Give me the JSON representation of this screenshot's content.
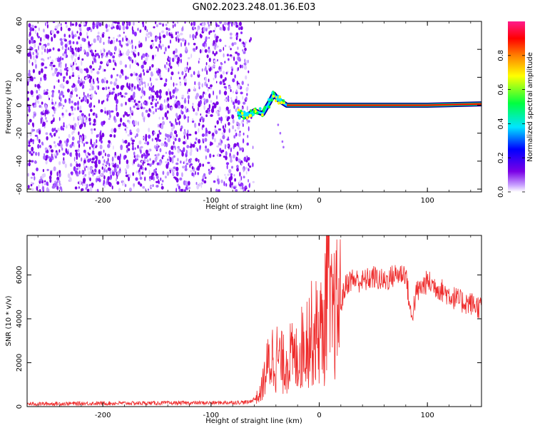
{
  "title": "GN02.2023.248.01.36.E03",
  "colors": {
    "snr_line": "#ee2a2a",
    "scatter_purple": "#7a00e6",
    "colorbar": [
      "#ffffff",
      "#c8a0ff",
      "#7a00e6",
      "#0000ff",
      "#00e5ff",
      "#00ff40",
      "#ffff00",
      "#ff7f00",
      "#ff0000",
      "#ff1a8c"
    ]
  },
  "chart_data": [
    {
      "type": "heatmap",
      "title": "GN02.2023.248.01.36.E03",
      "xlabel": "Height of straight line (km)",
      "ylabel": "Frequency (Hz)",
      "xlim": [
        -270,
        150
      ],
      "ylim": [
        -62,
        60
      ],
      "xticks": [
        -200,
        -100,
        0,
        100
      ],
      "yticks": [
        -60,
        -40,
        -20,
        0,
        20,
        40,
        60
      ],
      "noise_region": {
        "x": [
          -270,
          -65
        ],
        "y": [
          -62,
          60
        ],
        "description": "dense scattered low-amplitude speckle"
      },
      "signal_track": {
        "points": [
          {
            "x": -75,
            "y": -6
          },
          {
            "x": -68,
            "y": -8
          },
          {
            "x": -60,
            "y": -4
          },
          {
            "x": -52,
            "y": -6
          },
          {
            "x": -46,
            "y": 2
          },
          {
            "x": -42,
            "y": 8
          },
          {
            "x": -38,
            "y": 4
          },
          {
            "x": -30,
            "y": 0
          },
          {
            "x": 0,
            "y": 0
          },
          {
            "x": 100,
            "y": 0
          },
          {
            "x": 150,
            "y": 1
          }
        ],
        "peak_amplitude": 1.0
      },
      "colorbar": {
        "label": "Normalized spectral amplitude",
        "ticks": [
          0.0,
          0.2,
          0.4,
          0.6,
          0.8
        ],
        "range": [
          0,
          1
        ]
      }
    },
    {
      "type": "line",
      "xlabel": "Height of straight line (km)",
      "ylabel": "SNR (10 * v/v)",
      "xlim": [
        -270,
        150
      ],
      "ylim": [
        0,
        7800
      ],
      "xticks": [
        -200,
        -100,
        0,
        100
      ],
      "yticks": [
        0,
        2000,
        4000,
        6000
      ],
      "series": [
        {
          "x": [
            -270,
            -200,
            -100,
            -65,
            -55,
            -48,
            -42,
            -38,
            -33,
            -28,
            -22,
            -15,
            -10,
            -5,
            0,
            5,
            8,
            10,
            15,
            20,
            25,
            30,
            40,
            50,
            60,
            70,
            80,
            85,
            90,
            100,
            110,
            120,
            130,
            140,
            150
          ],
          "y": [
            120,
            150,
            170,
            200,
            500,
            1800,
            2400,
            2200,
            1900,
            2300,
            2100,
            2800,
            3300,
            3300,
            3500,
            3400,
            7800,
            4000,
            4300,
            4700,
            5600,
            5800,
            5700,
            5900,
            5700,
            6000,
            6100,
            4000,
            5200,
            5700,
            5400,
            5100,
            4800,
            4700,
            4500
          ]
        }
      ]
    }
  ]
}
